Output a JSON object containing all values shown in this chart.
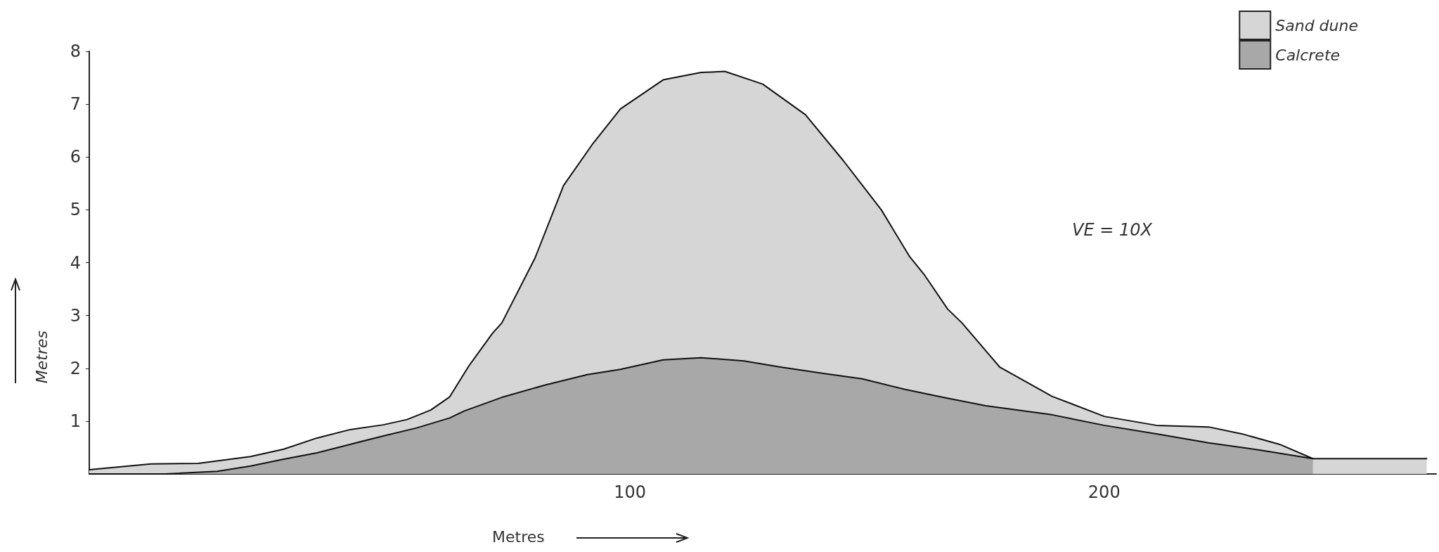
{
  "chart_data": {
    "type": "area",
    "xlabel": "Metres",
    "ylabel": "Metres",
    "annotations": [
      "VE = 10X"
    ],
    "series": [
      {
        "name": "Sand dune",
        "color": "#d6d6d6",
        "x": [
          -14,
          -1,
          9,
          20,
          27,
          34,
          41,
          48,
          53,
          58,
          62,
          66,
          71,
          73,
          80,
          86,
          92,
          98,
          107,
          115,
          120,
          128,
          137,
          145,
          153,
          159,
          162,
          167,
          170,
          178,
          189,
          200,
          211,
          222,
          229,
          237,
          244,
          268
        ],
        "values": [
          0.08,
          0.19,
          0.2,
          0.33,
          0.47,
          0.68,
          0.84,
          0.93,
          1.03,
          1.21,
          1.46,
          2.04,
          2.66,
          2.86,
          4.09,
          5.46,
          6.23,
          6.91,
          7.46,
          7.6,
          7.62,
          7.38,
          6.8,
          5.93,
          5.0,
          4.11,
          3.78,
          3.12,
          2.86,
          2.02,
          1.47,
          1.09,
          0.92,
          0.89,
          0.76,
          0.56,
          0.29,
          0.29
        ]
      },
      {
        "name": "Calcrete",
        "color": "#a8a8a8",
        "x": [
          -14,
          2,
          13,
          20,
          27,
          34,
          41,
          48,
          55,
          62,
          65,
          73,
          82,
          91,
          98,
          107,
          115,
          124,
          132,
          141,
          149,
          158,
          166,
          175,
          189,
          200,
          211,
          222,
          233,
          244
        ],
        "values": [
          0,
          0,
          0.05,
          0.15,
          0.28,
          0.4,
          0.56,
          0.72,
          0.87,
          1.06,
          1.19,
          1.45,
          1.68,
          1.88,
          1.98,
          2.16,
          2.2,
          2.14,
          2.02,
          1.9,
          1.8,
          1.6,
          1.45,
          1.29,
          1.12,
          0.92,
          0.76,
          0.59,
          0.45,
          0.29
        ]
      }
    ],
    "xlim": [
      -14,
      270
    ],
    "xticks": [
      100,
      200
    ],
    "ylim": [
      0,
      8
    ],
    "yticks": [
      1,
      2,
      3,
      4,
      5,
      6,
      7,
      8
    ],
    "grid": false,
    "legend": "top right",
    "marker": "none",
    "line_style": "solid"
  }
}
